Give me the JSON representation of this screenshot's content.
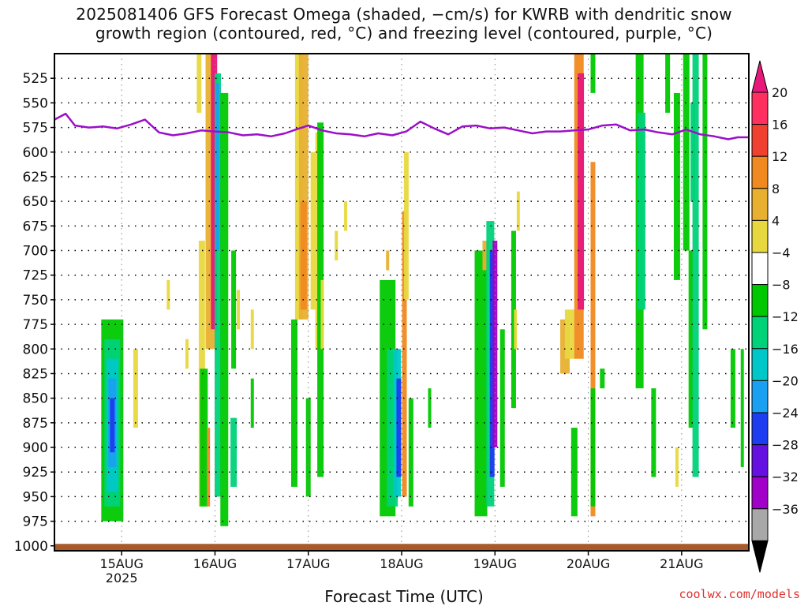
{
  "title_line1": "2025081406 GFS Forecast Omega (shaded, −cm/s) for KWRB with dendritic snow",
  "title_line2": "growth region (contoured, red, °C) and freezing level (contoured, purple, °C)",
  "credit": "coolwx.com/models",
  "chart_data": {
    "type": "heatmap",
    "title": "2025081406 GFS Forecast Omega (shaded, −cm/s) for KWRB with dendritic snow growth region (contoured, red, °C) and freezing level (contoured, purple, °C)",
    "xlabel": "Forecast Time (UTC)",
    "ylabel": "",
    "x_ticks": [
      {
        "label": "15AUG",
        "sub": "2025",
        "day": 0
      },
      {
        "label": "16AUG",
        "sub": "",
        "day": 1
      },
      {
        "label": "17AUG",
        "sub": "",
        "day": 2
      },
      {
        "label": "18AUG",
        "sub": "",
        "day": 3
      },
      {
        "label": "19AUG",
        "sub": "",
        "day": 4
      },
      {
        "label": "20AUG",
        "sub": "",
        "day": 5
      },
      {
        "label": "21AUG",
        "sub": "",
        "day": 6
      }
    ],
    "xlim_days_from_15aug": [
      -0.72,
      6.72
    ],
    "y_ticks": [
      525,
      550,
      575,
      600,
      625,
      650,
      675,
      700,
      725,
      750,
      775,
      800,
      825,
      850,
      875,
      900,
      925,
      950,
      975,
      1000
    ],
    "ylim": [
      500,
      1005
    ],
    "grid": true,
    "colorbar": {
      "labels": [
        "20",
        "16",
        "12",
        "8",
        "4",
        "−4",
        "−8",
        "−12",
        "−16",
        "−20",
        "−24",
        "−28",
        "−32",
        "−36"
      ],
      "colors": [
        "#ff3060",
        "#f04030",
        "#f08a20",
        "#e8b030",
        "#e8d840",
        "#ffffff",
        "#00c800",
        "#00d27a",
        "#00c8c8",
        "#1aa0f0",
        "#1e3cf0",
        "#6410e0",
        "#a000c8",
        "#a8a8a8"
      ],
      "top_arrow_color": "#e8187a",
      "bottom_arrow_color": "#000000"
    },
    "freezing_level": {
      "color": "#9b10c8",
      "x_days": [
        -0.72,
        -0.6,
        -0.5,
        -0.35,
        -0.2,
        -0.05,
        0.1,
        0.25,
        0.4,
        0.55,
        0.7,
        0.85,
        1.0,
        1.15,
        1.3,
        1.45,
        1.6,
        1.75,
        1.9,
        2.0,
        2.15,
        2.3,
        2.45,
        2.6,
        2.75,
        2.9,
        3.05,
        3.2,
        3.35,
        3.5,
        3.65,
        3.8,
        3.95,
        4.1,
        4.25,
        4.4,
        4.55,
        4.7,
        4.85,
        5.0,
        5.15,
        5.3,
        5.45,
        5.6,
        5.75,
        5.9,
        6.05,
        6.2,
        6.35,
        6.5,
        6.6,
        6.72
      ],
      "p_hPa": [
        567,
        561,
        573,
        575,
        574,
        576,
        572,
        567,
        580,
        583,
        581,
        578,
        579,
        580,
        583,
        582,
        584,
        581,
        576,
        573,
        578,
        581,
        582,
        584,
        581,
        583,
        579,
        569,
        576,
        582,
        574,
        573,
        576,
        575,
        578,
        581,
        579,
        579,
        578,
        577,
        573,
        572,
        578,
        577,
        580,
        582,
        577,
        582,
        584,
        587,
        585,
        585
      ]
    },
    "terrain": {
      "color": "#a85a2a",
      "top_hPa": 998
    }
  }
}
